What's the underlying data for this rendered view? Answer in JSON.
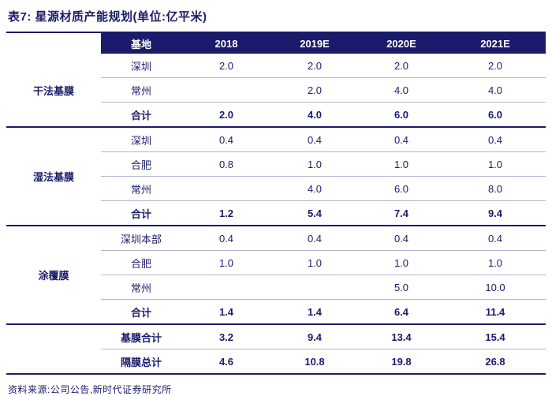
{
  "title": "表7:  星源材质产能规划(单位:亿平米)",
  "colors": {
    "navy_accent": "#1b1b6b",
    "header_bg": "#1b1b6b",
    "header_text": "#ffffff",
    "row_divider": "#b4b6ce",
    "background": "#ffffff"
  },
  "header": {
    "base": "基地",
    "years": [
      "2018",
      "2019E",
      "2020E",
      "2021E"
    ]
  },
  "groups": [
    {
      "name": "干法基膜",
      "rows": [
        {
          "base": "深圳",
          "values": [
            "2.0",
            "2.0",
            "2.0",
            "2.0"
          ]
        },
        {
          "base": "常州",
          "values": [
            "",
            "2.0",
            "4.0",
            "4.0"
          ]
        },
        {
          "base": "合计",
          "values": [
            "2.0",
            "4.0",
            "6.0",
            "6.0"
          ]
        }
      ]
    },
    {
      "name": "湿法基膜",
      "rows": [
        {
          "base": "深圳",
          "values": [
            "0.4",
            "0.4",
            "0.4",
            "0.4"
          ]
        },
        {
          "base": "合肥",
          "values": [
            "0.8",
            "1.0",
            "1.0",
            "1.0"
          ]
        },
        {
          "base": "常州",
          "values": [
            "",
            "4.0",
            "6.0",
            "8.0"
          ]
        },
        {
          "base": "合计",
          "values": [
            "1.2",
            "5.4",
            "7.4",
            "9.4"
          ]
        }
      ]
    },
    {
      "name": "涂覆膜",
      "rows": [
        {
          "base": "深圳本部",
          "values": [
            "0.4",
            "0.4",
            "0.4",
            "0.4"
          ]
        },
        {
          "base": "合肥",
          "values": [
            "1.0",
            "1.0",
            "1.0",
            "1.0"
          ]
        },
        {
          "base": "常州",
          "values": [
            "",
            "",
            "5.0",
            "10.0"
          ]
        },
        {
          "base": "合计",
          "values": [
            "1.4",
            "1.4",
            "6.4",
            "11.4"
          ]
        }
      ]
    }
  ],
  "summary": [
    {
      "label": "基膜合计",
      "values": [
        "3.2",
        "9.4",
        "13.4",
        "15.4"
      ]
    },
    {
      "label": "隔膜总计",
      "values": [
        "4.6",
        "10.8",
        "19.8",
        "26.8"
      ]
    }
  ],
  "source": "资料来源:公司公告,新时代证券研究所",
  "chart_data": {
    "type": "table",
    "title": "星源材质产能规划(单位:亿平米)",
    "columns": [
      "基地",
      "2018",
      "2019E",
      "2020E",
      "2021E"
    ],
    "rows": [
      [
        "干法基膜-深圳",
        2.0,
        2.0,
        2.0,
        2.0
      ],
      [
        "干法基膜-常州",
        null,
        2.0,
        4.0,
        4.0
      ],
      [
        "干法基膜-合计",
        2.0,
        4.0,
        6.0,
        6.0
      ],
      [
        "湿法基膜-深圳",
        0.4,
        0.4,
        0.4,
        0.4
      ],
      [
        "湿法基膜-合肥",
        0.8,
        1.0,
        1.0,
        1.0
      ],
      [
        "湿法基膜-常州",
        null,
        4.0,
        6.0,
        8.0
      ],
      [
        "湿法基膜-合计",
        1.2,
        5.4,
        7.4,
        9.4
      ],
      [
        "涂覆膜-深圳本部",
        0.4,
        0.4,
        0.4,
        0.4
      ],
      [
        "涂覆膜-合肥",
        1.0,
        1.0,
        1.0,
        1.0
      ],
      [
        "涂覆膜-常州",
        null,
        null,
        5.0,
        10.0
      ],
      [
        "涂覆膜-合计",
        1.4,
        1.4,
        6.4,
        11.4
      ],
      [
        "基膜合计",
        3.2,
        9.4,
        13.4,
        15.4
      ],
      [
        "隔膜总计",
        4.6,
        10.8,
        19.8,
        26.8
      ]
    ]
  }
}
